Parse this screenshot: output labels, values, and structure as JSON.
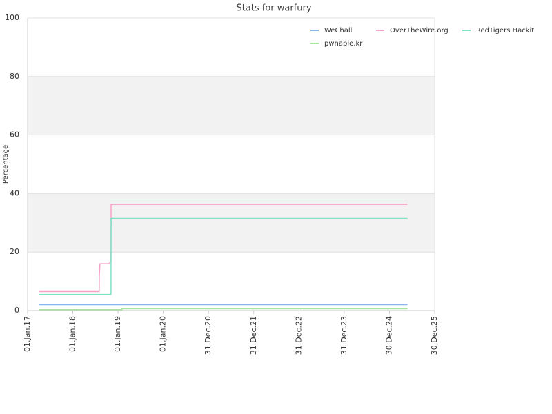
{
  "chart_data": {
    "type": "line",
    "title": "Stats for warfury",
    "y_label": "Percentage",
    "x": [
      "2017-04-01",
      "2018-08-02",
      "2018-08-03",
      "2018-08-08",
      "2018-10-25",
      "2018-10-26",
      "2018-11-05",
      "2018-11-06",
      "2019-02-01",
      "2019-02-02",
      "2025-05-25"
    ],
    "series": [
      {
        "name": "WeChall",
        "color": "#88b4e8",
        "values": [
          2,
          2,
          2,
          2,
          2,
          2,
          2,
          2,
          2,
          2,
          2
        ]
      },
      {
        "name": "OverTheWire.org",
        "color": "#f4a3c8",
        "values": [
          6.5,
          6.5,
          12,
          16,
          16,
          16.5,
          16.5,
          36.3,
          36.3,
          36.3,
          36.3
        ]
      },
      {
        "name": "RedTigers Hackit",
        "color": "#7fe3c6",
        "values": [
          5.5,
          5.5,
          5.5,
          5.5,
          5.5,
          5.5,
          5.5,
          31.5,
          31.5,
          31.5,
          31.5
        ]
      },
      {
        "name": "pwnable.kr",
        "color": "#a8e4a0",
        "values": [
          0.3,
          0.3,
          0.3,
          0.3,
          0.3,
          0.3,
          0.3,
          0.3,
          0.3,
          0.6,
          0.6
        ]
      }
    ],
    "xlim": [
      "2017-01-01",
      "2025-12-30"
    ],
    "xticks": [
      {
        "value": "2017-01-01",
        "label": "01.Jan.17"
      },
      {
        "value": "2018-01-01",
        "label": "01.Jan.18"
      },
      {
        "value": "2019-01-01",
        "label": "01.Jan.19"
      },
      {
        "value": "2020-01-01",
        "label": "01.Jan.20"
      },
      {
        "value": "2020-12-31",
        "label": "31.Dec.20"
      },
      {
        "value": "2021-12-31",
        "label": "31.Dec.21"
      },
      {
        "value": "2022-12-31",
        "label": "31.Dec.22"
      },
      {
        "value": "2023-12-31",
        "label": "31.Dec.23"
      },
      {
        "value": "2024-12-30",
        "label": "30.Dec.24"
      },
      {
        "value": "2025-12-30",
        "label": "30.Dec.25"
      }
    ],
    "ylim": [
      0,
      100
    ],
    "yticks": [
      0,
      20,
      40,
      60,
      80,
      100
    ],
    "grid": true
  }
}
